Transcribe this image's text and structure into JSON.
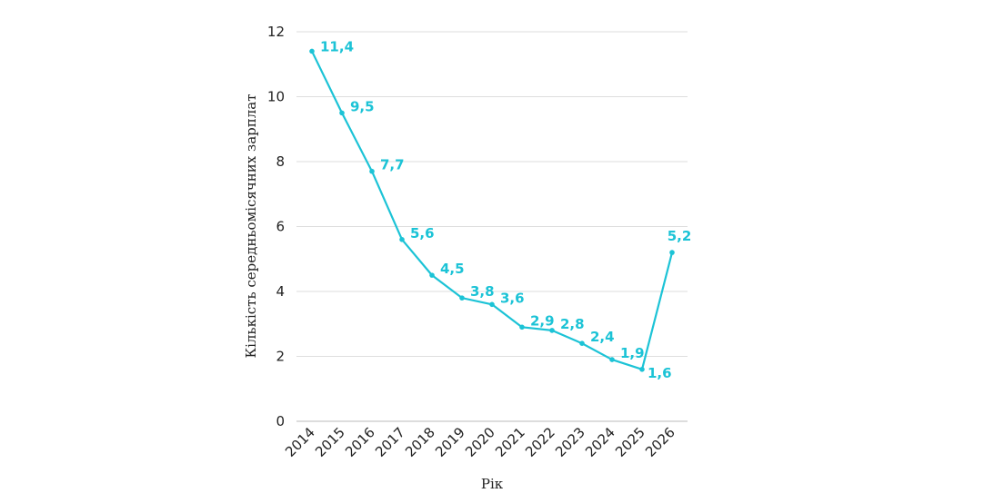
{
  "chart_data": {
    "type": "line",
    "title": "",
    "xlabel": "Рік",
    "ylabel": "Кількість середньомісячних зарплат",
    "ylim": [
      0,
      12
    ],
    "yticks": [
      "0",
      "2",
      "4",
      "6",
      "8",
      "10",
      "12"
    ],
    "grid": true,
    "legend": "none",
    "color": "#1cc3d6",
    "categories": [
      "2014",
      "2015",
      "2016",
      "2017",
      "2018",
      "2019",
      "2020",
      "2021",
      "2022",
      "2023",
      "2024",
      "2025",
      "2026"
    ],
    "values": [
      11.4,
      9.5,
      7.7,
      5.6,
      4.5,
      3.8,
      3.6,
      2.9,
      2.8,
      2.4,
      1.9,
      1.6,
      5.2
    ],
    "data_labels": [
      "11,4",
      "9,5",
      "7,7",
      "5,6",
      "4,5",
      "3,8",
      "3,6",
      "2,9",
      "2,8",
      "2,4",
      "1,9",
      "1,6",
      "5,2"
    ]
  }
}
